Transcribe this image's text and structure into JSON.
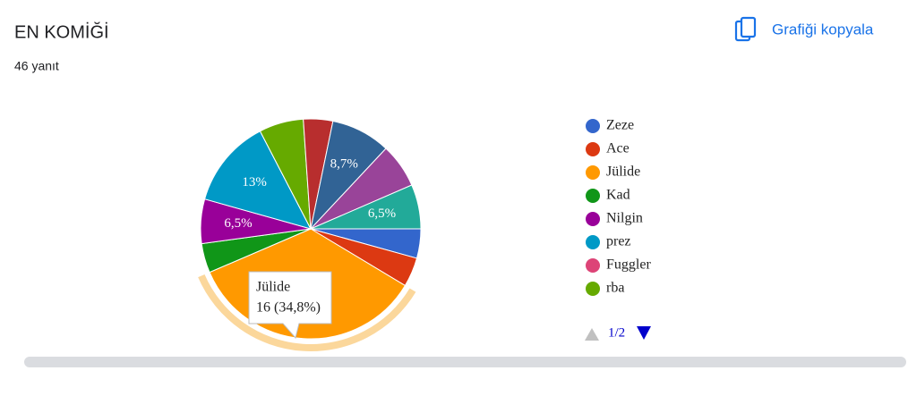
{
  "chart_data": {
    "type": "pie",
    "title": "EN KOMİĞİ",
    "subtitle": "46 yanıt",
    "copy_button": "Grafiği kopyala",
    "categories": [
      "Zeze",
      "Ace",
      "Jülide",
      "Kad",
      "Nilgin",
      "prez",
      "Fuggler",
      "rba",
      null,
      null,
      null,
      null
    ],
    "values": [
      4.3,
      4.3,
      34.8,
      4.3,
      6.5,
      13,
      0,
      6.5,
      4.3,
      8.7,
      6.5,
      6.5
    ],
    "value_labels": [
      null,
      null,
      null,
      null,
      "6,5%",
      "13%",
      null,
      null,
      null,
      "8,7%",
      null,
      "6,5%"
    ],
    "colors": [
      "#3366cc",
      "#dc3912",
      "#ff9900",
      "#109618",
      "#990099",
      "#0099c6",
      "#dd4477",
      "#66aa00",
      "#b82e2e",
      "#316395",
      "#994499",
      "#22aa99"
    ],
    "legend_count": 8,
    "legend_page": "1/2",
    "highlight": 2,
    "tooltip": "16 (34,8%)"
  }
}
